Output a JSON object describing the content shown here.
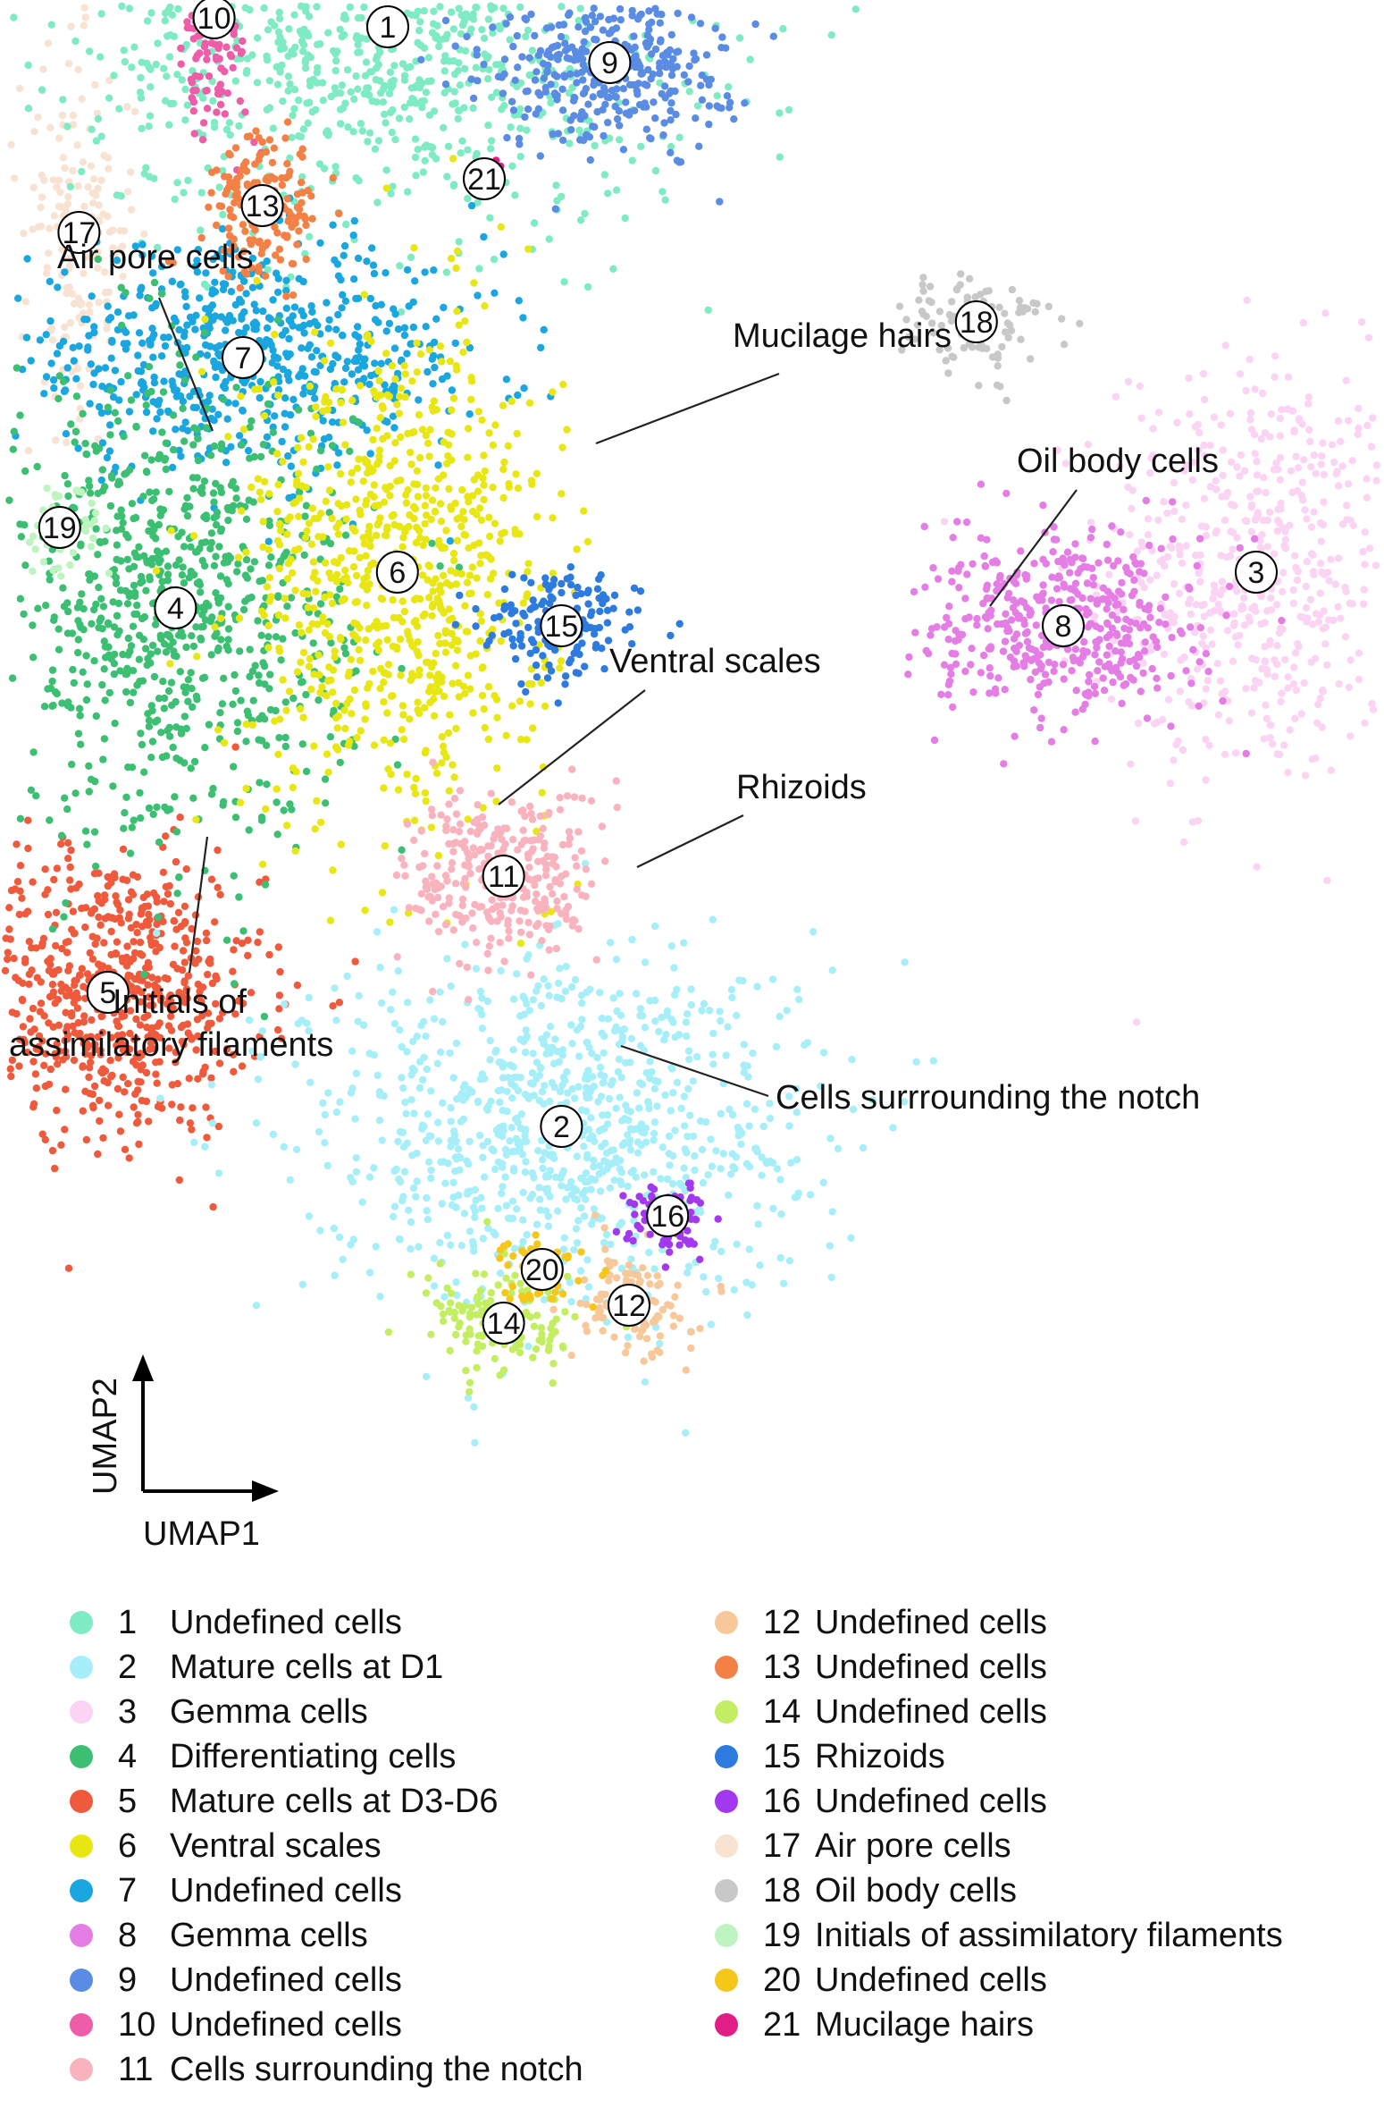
{
  "chart_data": {
    "type": "scatter",
    "xlabel": "UMAP1",
    "ylabel": "UMAP2",
    "clusters": [
      {
        "id": 1,
        "name": "Undefined cells",
        "color": "#7EEBC2",
        "cx": 0.05,
        "cy": 0.83,
        "sx": 0.16,
        "sy": 0.11,
        "n": 1100
      },
      {
        "id": 2,
        "name": "Mature cells at D1",
        "color": "#A6EEF8",
        "cx": 0.23,
        "cy": -0.4,
        "sx": 0.13,
        "sy": 0.1,
        "n": 950
      },
      {
        "id": 3,
        "name": "Gemma cells",
        "color": "#FBD4F4",
        "cx": 0.95,
        "cy": 0.22,
        "sx": 0.08,
        "sy": 0.12,
        "n": 550
      },
      {
        "id": 4,
        "name": "Differentiating cells",
        "color": "#3CBF72",
        "cx": -0.17,
        "cy": 0.18,
        "sx": 0.09,
        "sy": 0.13,
        "n": 850
      },
      {
        "id": 5,
        "name": "Mature cells at D3-D6",
        "color": "#F05A3C",
        "cx": -0.24,
        "cy": -0.25,
        "sx": 0.08,
        "sy": 0.08,
        "n": 700
      },
      {
        "id": 6,
        "name": "Ventral scales",
        "color": "#E8E613",
        "cx": 0.06,
        "cy": 0.22,
        "sx": 0.08,
        "sy": 0.14,
        "n": 800
      },
      {
        "id": 7,
        "name": "Undefined cells",
        "color": "#1AA6DF",
        "cx": -0.1,
        "cy": 0.46,
        "sx": 0.13,
        "sy": 0.06,
        "n": 650
      },
      {
        "id": 8,
        "name": "Gemma cells",
        "color": "#E57EE4",
        "cx": 0.75,
        "cy": 0.16,
        "sx": 0.07,
        "sy": 0.05,
        "n": 450
      },
      {
        "id": 9,
        "name": "Undefined cells",
        "color": "#5B8CE4",
        "cx": 0.28,
        "cy": 0.79,
        "sx": 0.06,
        "sy": 0.05,
        "n": 380
      },
      {
        "id": 10,
        "name": "Undefined cells",
        "color": "#EE5DA8",
        "cx": -0.13,
        "cy": 0.84,
        "sx": 0.02,
        "sy": 0.06,
        "n": 160
      },
      {
        "id": 11,
        "name": "Cells surrounding the notch",
        "color": "#F9B3BE",
        "cx": 0.17,
        "cy": -0.12,
        "sx": 0.05,
        "sy": 0.05,
        "n": 300
      },
      {
        "id": 12,
        "name": "Undefined cells",
        "color": "#F7C99A",
        "cx": 0.3,
        "cy": -0.6,
        "sx": 0.03,
        "sy": 0.03,
        "n": 110
      },
      {
        "id": 13,
        "name": "Undefined cells",
        "color": "#F38045",
        "cx": -0.08,
        "cy": 0.63,
        "sx": 0.03,
        "sy": 0.04,
        "n": 170
      },
      {
        "id": 14,
        "name": "Undefined cells",
        "color": "#C4EE62",
        "cx": 0.17,
        "cy": -0.62,
        "sx": 0.04,
        "sy": 0.03,
        "n": 140
      },
      {
        "id": 15,
        "name": "Rhizoids",
        "color": "#2E7BE0",
        "cx": 0.23,
        "cy": 0.16,
        "sx": 0.04,
        "sy": 0.03,
        "n": 170
      },
      {
        "id": 16,
        "name": "Undefined cells",
        "color": "#A339EE",
        "cx": 0.34,
        "cy": -0.5,
        "sx": 0.02,
        "sy": 0.02,
        "n": 90
      },
      {
        "id": 17,
        "name": "Air pore cells",
        "color": "#F8E2D2",
        "cx": -0.27,
        "cy": 0.6,
        "sx": 0.03,
        "sy": 0.1,
        "n": 170
      },
      {
        "id": 18,
        "name": "Oil body cells",
        "color": "#C8C8C8",
        "cx": 0.66,
        "cy": 0.5,
        "sx": 0.04,
        "sy": 0.03,
        "n": 100
      },
      {
        "id": 19,
        "name": "Initials of assimilatory filaments",
        "color": "#BDF4BF",
        "cx": -0.29,
        "cy": 0.27,
        "sx": 0.02,
        "sy": 0.03,
        "n": 50
      },
      {
        "id": 20,
        "name": "Undefined cells",
        "color": "#F5C71A",
        "cx": 0.21,
        "cy": -0.56,
        "sx": 0.02,
        "sy": 0.02,
        "n": 60
      },
      {
        "id": 21,
        "name": "Mucilage hairs",
        "color": "#E01E86",
        "cx": 0.15,
        "cy": 0.66,
        "sx": 0.01,
        "sy": 0.01,
        "n": 15
      }
    ],
    "annotations": [
      {
        "text": "Air pore cells"
      },
      {
        "text": "Mucilage hairs"
      },
      {
        "text": "Oil body cells"
      },
      {
        "text": "Ventral scales"
      },
      {
        "text": "Rhizoids"
      },
      {
        "text": "Initials of"
      },
      {
        "text": "assimilatory filaments"
      },
      {
        "text": "Cells surrrounding the notch"
      }
    ]
  }
}
